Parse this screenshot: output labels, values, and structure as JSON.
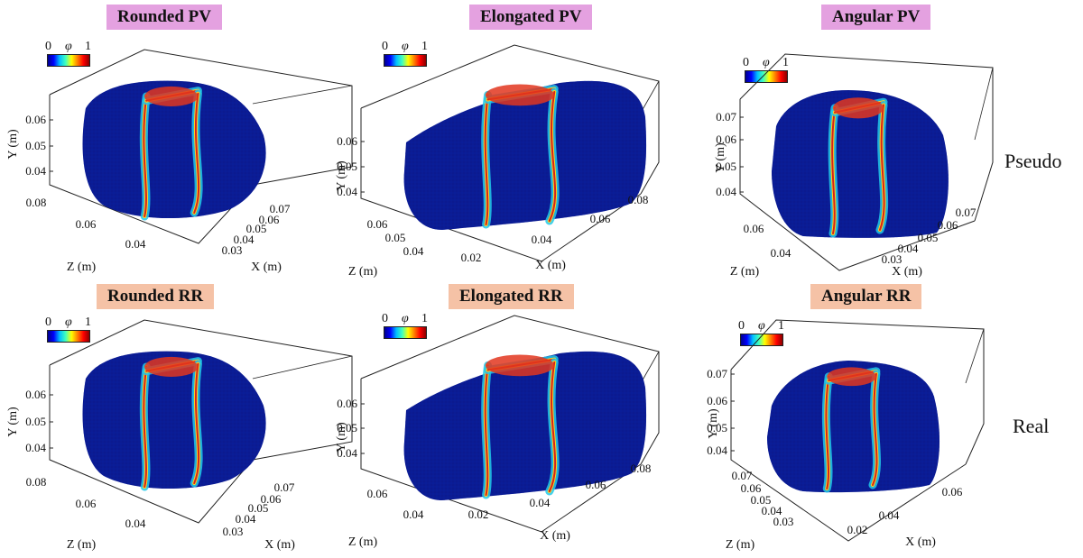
{
  "colorbar": {
    "min": "0",
    "symbol": "φ",
    "max": "1",
    "colormap": "jet"
  },
  "row_labels": {
    "pseudo": "Pseudo",
    "real": "Real"
  },
  "colors": {
    "pv_title_bg": "#e4a1e0",
    "rr_title_bg": "#f5c2a6",
    "body_fill": "#0b1a8f"
  },
  "panels": [
    {
      "title": "Rounded PV",
      "y_label": "Y (m)",
      "z_label": "Z (m)",
      "x_label": "X (m)",
      "y_ticks": [
        "0.06",
        "0.05",
        "0.04"
      ],
      "z_ticks": [
        "0.08",
        "0.06",
        "0.04"
      ],
      "x_ticks": [
        "0.07",
        "0.06",
        "0.05",
        "0.04",
        "0.03"
      ]
    },
    {
      "title": "Elongated PV",
      "y_label": "Y (m)",
      "z_label": "Z (m)",
      "x_label": "X (m)",
      "y_ticks": [
        "0.06",
        "0.05",
        "0.04"
      ],
      "z_ticks": [
        "0.06",
        "0.05",
        "0.04"
      ],
      "x_ticks": [
        "0.02",
        "0.04",
        "0.06",
        "0.08"
      ]
    },
    {
      "title": "Angular PV",
      "y_label": "Y (m)",
      "z_label": "Z (m)",
      "x_label": "X (m)",
      "y_ticks": [
        "0.07",
        "0.06",
        "0.05",
        "0.04"
      ],
      "z_ticks": [
        "0.06",
        "0.04"
      ],
      "x_ticks": [
        "0.07",
        "0.06",
        "0.05",
        "0.04",
        "0.03"
      ]
    },
    {
      "title": "Rounded RR",
      "y_label": "Y (m)",
      "z_label": "Z (m)",
      "x_label": "X (m)",
      "y_ticks": [
        "0.06",
        "0.05",
        "0.04"
      ],
      "z_ticks": [
        "0.08",
        "0.06",
        "0.04"
      ],
      "x_ticks": [
        "0.07",
        "0.06",
        "0.05",
        "0.04",
        "0.03"
      ]
    },
    {
      "title": "Elongated RR",
      "y_label": "Y (m)",
      "z_label": "Z (m)",
      "x_label": "X (m)",
      "y_ticks": [
        "0.06",
        "0.05",
        "0.04"
      ],
      "z_ticks": [
        "0.06",
        "0.04"
      ],
      "x_ticks": [
        "0.02",
        "0.04",
        "0.06",
        "0.08"
      ]
    },
    {
      "title": "Angular RR",
      "y_label": "Y (m)",
      "z_label": "Z (m)",
      "x_label": "X (m)",
      "y_ticks": [
        "0.07",
        "0.06",
        "0.05",
        "0.04"
      ],
      "z_ticks": [
        "0.07",
        "0.06",
        "0.05",
        "0.04",
        "0.03"
      ],
      "x_ticks": [
        "0.02",
        "0.04",
        "0.06"
      ]
    }
  ]
}
